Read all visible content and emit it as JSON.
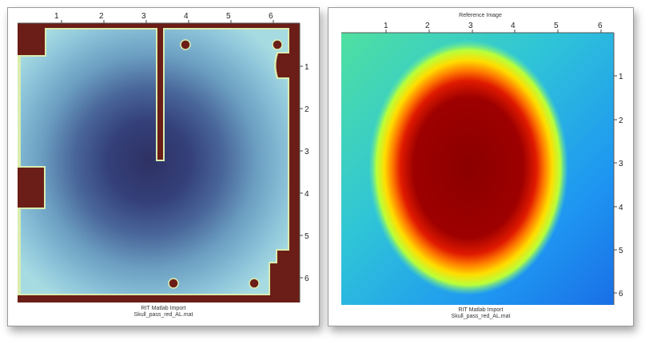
{
  "left_panel": {
    "title": "",
    "footer_line1": "RIT Matlab Import",
    "footer_line2": "Skull_pass_red_AL.mat",
    "x_ticks": [
      "1",
      "2",
      "3",
      "4",
      "5",
      "6"
    ],
    "y_ticks": [
      "1",
      "2",
      "3",
      "4",
      "5",
      "6"
    ]
  },
  "right_panel": {
    "title": "Reference Image",
    "footer_line1": "RIT Matlab Import",
    "footer_line2": "Skull_pass_red_AL.mat",
    "x_ticks": [
      "1",
      "2",
      "3",
      "4",
      "5",
      "6"
    ],
    "y_ticks": [
      "1",
      "2",
      "3",
      "4",
      "5",
      "6"
    ]
  },
  "colors": {
    "frame_brown": "#6b1d17",
    "dose_dark": "#2f3468",
    "dose_light": "#9fd3e0",
    "heat_dark_red": "#8b0000",
    "heat_blue": "#1a8cff"
  }
}
